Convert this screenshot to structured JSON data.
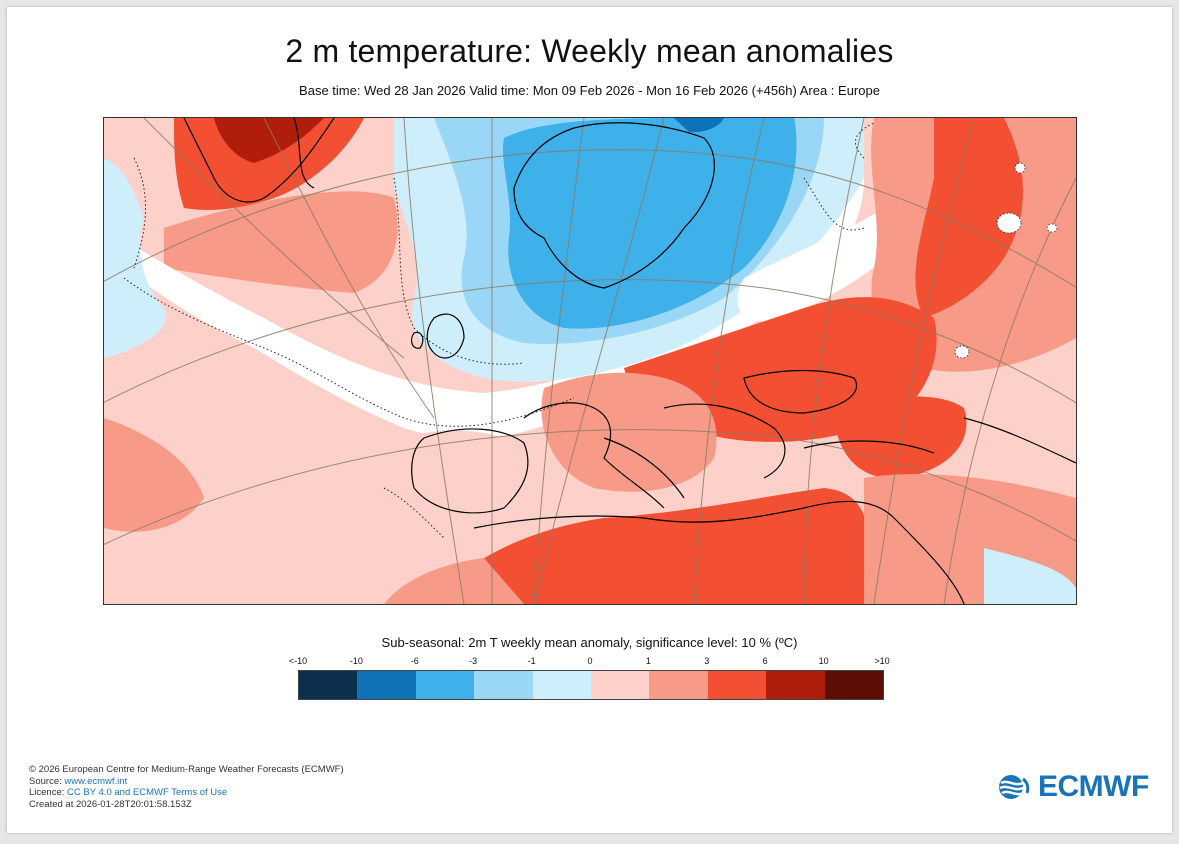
{
  "header": {
    "title": "2 m temperature: Weekly mean anomalies",
    "subtitle": "Base time: Wed 28 Jan 2026 Valid time: Mon 09 Feb 2026 - Mon 16 Feb 2026 (+456h) Area : Europe"
  },
  "legend": {
    "title": "Sub-seasonal: 2m T weekly mean anomaly, significance level: 10 % (ºC)",
    "ticks": [
      "<-10",
      "-10",
      "-6",
      "-3",
      "-1",
      "0",
      "1",
      "3",
      "6",
      "10",
      ">10"
    ],
    "colors": [
      "#0b2f4d",
      "#0e73b6",
      "#3eb0ea",
      "#9ad7f7",
      "#cfeefc",
      "#fdd1c9",
      "#f79a88",
      "#f34f33",
      "#b11d0b",
      "#5c0d05"
    ]
  },
  "footer": {
    "copyright": "© 2026 European Centre for Medium-Range Weather Forecasts (ECMWF)",
    "source_label": "Source: ",
    "source_link": "www.ecmwf.int",
    "licence_label": "Licence: ",
    "licence_link": "CC BY 4.0 and ECMWF Terms of Use",
    "created": "Created at 2026-01-28T20:01:58.153Z"
  },
  "logo": {
    "text": "ECMWF"
  }
}
